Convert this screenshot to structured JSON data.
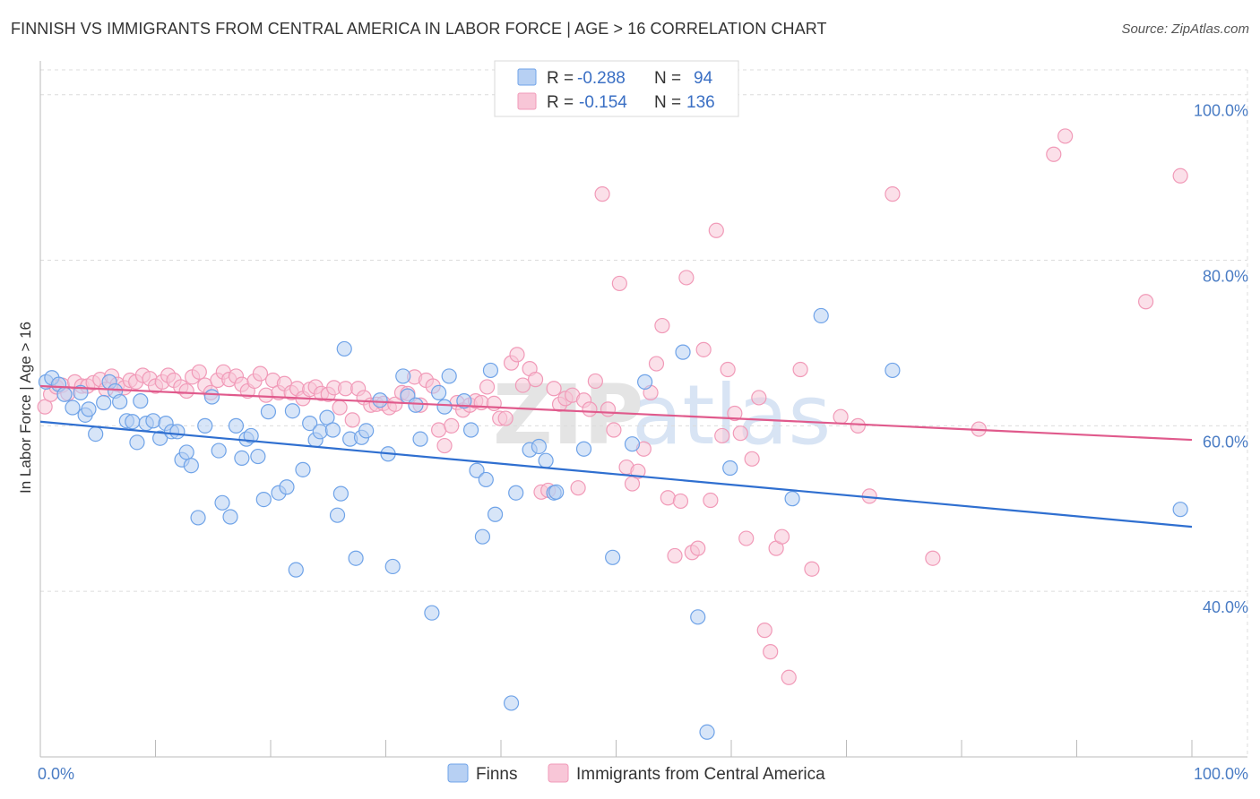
{
  "title": "FINNISH VS IMMIGRANTS FROM CENTRAL AMERICA IN LABOR FORCE | AGE > 16 CORRELATION CHART",
  "source": "Source: ZipAtlas.com",
  "watermark": "ZIPatlas",
  "chart_data": {
    "type": "scatter",
    "title": "FINNISH VS IMMIGRANTS FROM CENTRAL AMERICA IN LABOR FORCE | AGE > 16 CORRELATION CHART",
    "xlabel": "",
    "ylabel": "In Labor Force | Age > 16",
    "xlim": [
      0,
      100
    ],
    "ylim": [
      20,
      103
    ],
    "x_tick_labels": [
      "0.0%",
      "100.0%"
    ],
    "y_ticks": [
      40,
      60,
      80,
      100
    ],
    "y_tick_labels": [
      "40.0%",
      "60.0%",
      "80.0%",
      "100.0%"
    ],
    "grid": true,
    "legend_position": "top-center",
    "legend": {
      "rows": [
        {
          "r_label": "R =",
          "r_value": "-0.288",
          "n_label": "N =",
          "n_value": "94"
        },
        {
          "r_label": "R =",
          "r_value": "-0.154",
          "n_label": "N =",
          "n_value": "136"
        }
      ]
    },
    "series": [
      {
        "name": "Finns",
        "color": "#6fa3e8",
        "fill": "#b7d0f3",
        "line_color": "#2f6fd0",
        "r": -0.288,
        "n": 94,
        "trend": {
          "x": [
            0,
            100
          ],
          "y": [
            60.5,
            47.8
          ]
        },
        "points": [
          [
            0.5,
            65.3
          ],
          [
            1.0,
            65.8
          ],
          [
            1.6,
            65.0
          ],
          [
            2.1,
            63.8
          ],
          [
            2.8,
            62.2
          ],
          [
            3.5,
            64.0
          ],
          [
            3.9,
            61.3
          ],
          [
            4.2,
            62.0
          ],
          [
            4.8,
            59.0
          ],
          [
            5.5,
            62.8
          ],
          [
            6.0,
            65.3
          ],
          [
            6.5,
            64.2
          ],
          [
            6.9,
            62.9
          ],
          [
            7.5,
            60.6
          ],
          [
            8.0,
            60.5
          ],
          [
            8.4,
            58.0
          ],
          [
            8.7,
            63.0
          ],
          [
            9.2,
            60.3
          ],
          [
            9.8,
            60.6
          ],
          [
            10.4,
            58.5
          ],
          [
            10.9,
            60.3
          ],
          [
            11.4,
            59.3
          ],
          [
            11.9,
            59.3
          ],
          [
            12.3,
            55.9
          ],
          [
            12.7,
            56.8
          ],
          [
            13.1,
            55.2
          ],
          [
            13.7,
            48.9
          ],
          [
            14.3,
            60.0
          ],
          [
            14.9,
            63.5
          ],
          [
            15.5,
            57.0
          ],
          [
            15.8,
            50.7
          ],
          [
            16.5,
            49.0
          ],
          [
            17.0,
            60.0
          ],
          [
            17.5,
            56.1
          ],
          [
            17.9,
            58.4
          ],
          [
            18.3,
            58.8
          ],
          [
            18.9,
            56.3
          ],
          [
            19.4,
            51.1
          ],
          [
            19.8,
            61.7
          ],
          [
            20.7,
            51.9
          ],
          [
            21.4,
            52.6
          ],
          [
            21.9,
            61.8
          ],
          [
            22.2,
            42.6
          ],
          [
            22.8,
            54.7
          ],
          [
            23.4,
            60.3
          ],
          [
            23.9,
            58.3
          ],
          [
            24.3,
            59.3
          ],
          [
            24.9,
            61.0
          ],
          [
            25.4,
            59.5
          ],
          [
            25.8,
            49.2
          ],
          [
            26.1,
            51.8
          ],
          [
            26.4,
            69.3
          ],
          [
            26.9,
            58.4
          ],
          [
            27.4,
            44.0
          ],
          [
            27.9,
            58.6
          ],
          [
            28.3,
            59.4
          ],
          [
            29.5,
            63.1
          ],
          [
            30.2,
            56.6
          ],
          [
            30.6,
            43.0
          ],
          [
            31.5,
            66.0
          ],
          [
            31.9,
            63.6
          ],
          [
            32.6,
            62.5
          ],
          [
            33.0,
            58.4
          ],
          [
            34.0,
            37.4
          ],
          [
            34.6,
            64.0
          ],
          [
            35.1,
            62.3
          ],
          [
            35.5,
            66.0
          ],
          [
            36.8,
            63.0
          ],
          [
            37.4,
            59.5
          ],
          [
            37.9,
            54.6
          ],
          [
            38.4,
            46.6
          ],
          [
            38.7,
            53.5
          ],
          [
            39.1,
            66.7
          ],
          [
            39.5,
            49.3
          ],
          [
            40.9,
            26.5
          ],
          [
            41.3,
            51.9
          ],
          [
            42.5,
            57.1
          ],
          [
            43.3,
            57.5
          ],
          [
            43.9,
            55.8
          ],
          [
            44.6,
            51.9
          ],
          [
            44.8,
            52.0
          ],
          [
            47.2,
            57.2
          ],
          [
            49.7,
            44.1
          ],
          [
            51.4,
            57.8
          ],
          [
            52.5,
            65.3
          ],
          [
            55.8,
            68.9
          ],
          [
            57.1,
            36.9
          ],
          [
            57.9,
            23.0
          ],
          [
            59.9,
            54.9
          ],
          [
            65.3,
            51.2
          ],
          [
            67.8,
            73.3
          ],
          [
            74.0,
            66.7
          ],
          [
            99.0,
            49.9
          ]
        ]
      },
      {
        "name": "Immigrants from Central America",
        "color": "#f19ab8",
        "fill": "#f8c6d7",
        "line_color": "#e05a8c",
        "r": -0.154,
        "n": 136,
        "trend": {
          "x": [
            0,
            100
          ],
          "y": [
            64.8,
            58.3
          ]
        },
        "points": [
          [
            0.4,
            62.3
          ],
          [
            0.9,
            63.8
          ],
          [
            1.4,
            64.7
          ],
          [
            1.9,
            64.9
          ],
          [
            2.4,
            63.9
          ],
          [
            3.0,
            65.3
          ],
          [
            3.6,
            64.8
          ],
          [
            4.1,
            64.8
          ],
          [
            4.6,
            65.2
          ],
          [
            5.2,
            65.6
          ],
          [
            5.7,
            64.4
          ],
          [
            6.2,
            66.0
          ],
          [
            6.7,
            65.0
          ],
          [
            7.3,
            64.6
          ],
          [
            7.8,
            65.5
          ],
          [
            8.3,
            65.3
          ],
          [
            8.9,
            66.1
          ],
          [
            9.5,
            65.7
          ],
          [
            10.0,
            64.8
          ],
          [
            10.6,
            65.3
          ],
          [
            11.1,
            66.1
          ],
          [
            11.6,
            65.5
          ],
          [
            12.2,
            64.7
          ],
          [
            12.7,
            64.2
          ],
          [
            13.2,
            65.9
          ],
          [
            13.8,
            66.5
          ],
          [
            14.3,
            64.9
          ],
          [
            14.8,
            64.0
          ],
          [
            15.4,
            65.5
          ],
          [
            15.9,
            66.5
          ],
          [
            16.4,
            65.6
          ],
          [
            17.0,
            66.0
          ],
          [
            17.5,
            65.0
          ],
          [
            18.0,
            64.2
          ],
          [
            18.6,
            65.4
          ],
          [
            19.1,
            66.3
          ],
          [
            19.6,
            63.7
          ],
          [
            20.2,
            65.5
          ],
          [
            20.7,
            64.0
          ],
          [
            21.2,
            65.1
          ],
          [
            21.8,
            64.0
          ],
          [
            22.3,
            64.5
          ],
          [
            22.8,
            63.3
          ],
          [
            23.4,
            64.4
          ],
          [
            23.9,
            64.7
          ],
          [
            24.4,
            63.9
          ],
          [
            25.0,
            63.8
          ],
          [
            25.5,
            64.6
          ],
          [
            26.0,
            62.2
          ],
          [
            26.5,
            64.5
          ],
          [
            27.1,
            60.7
          ],
          [
            27.6,
            64.5
          ],
          [
            28.1,
            63.4
          ],
          [
            28.7,
            62.5
          ],
          [
            29.2,
            62.6
          ],
          [
            29.8,
            62.7
          ],
          [
            30.3,
            62.2
          ],
          [
            30.8,
            62.6
          ],
          [
            31.4,
            64.0
          ],
          [
            31.9,
            63.9
          ],
          [
            32.5,
            65.9
          ],
          [
            33.0,
            62.5
          ],
          [
            33.5,
            65.5
          ],
          [
            34.1,
            64.8
          ],
          [
            34.6,
            59.5
          ],
          [
            35.1,
            57.6
          ],
          [
            35.7,
            60.0
          ],
          [
            36.2,
            62.8
          ],
          [
            36.7,
            61.9
          ],
          [
            37.3,
            62.5
          ],
          [
            37.8,
            63.0
          ],
          [
            38.3,
            62.8
          ],
          [
            38.8,
            64.7
          ],
          [
            39.4,
            62.7
          ],
          [
            39.9,
            60.9
          ],
          [
            40.4,
            60.9
          ],
          [
            40.9,
            67.6
          ],
          [
            41.4,
            68.6
          ],
          [
            41.9,
            64.9
          ],
          [
            42.5,
            66.9
          ],
          [
            43.0,
            65.6
          ],
          [
            43.5,
            52.0
          ],
          [
            44.1,
            52.2
          ],
          [
            44.6,
            64.5
          ],
          [
            45.1,
            62.6
          ],
          [
            45.6,
            63.3
          ],
          [
            46.2,
            63.7
          ],
          [
            46.7,
            52.5
          ],
          [
            47.2,
            63.1
          ],
          [
            47.7,
            62.0
          ],
          [
            48.2,
            65.4
          ],
          [
            48.8,
            88.0
          ],
          [
            49.3,
            62.0
          ],
          [
            49.8,
            59.5
          ],
          [
            50.3,
            77.2
          ],
          [
            50.9,
            55.0
          ],
          [
            51.4,
            53.0
          ],
          [
            51.9,
            54.5
          ],
          [
            52.4,
            57.2
          ],
          [
            53.0,
            64.0
          ],
          [
            53.5,
            67.5
          ],
          [
            54.0,
            72.1
          ],
          [
            54.5,
            51.3
          ],
          [
            55.1,
            44.3
          ],
          [
            55.6,
            50.9
          ],
          [
            56.1,
            77.9
          ],
          [
            56.6,
            44.7
          ],
          [
            57.1,
            45.2
          ],
          [
            57.6,
            69.2
          ],
          [
            58.2,
            51.0
          ],
          [
            58.7,
            83.6
          ],
          [
            59.2,
            58.8
          ],
          [
            59.7,
            66.8
          ],
          [
            60.3,
            61.5
          ],
          [
            60.8,
            59.1
          ],
          [
            61.3,
            46.4
          ],
          [
            61.8,
            56.0
          ],
          [
            62.4,
            63.4
          ],
          [
            62.9,
            35.3
          ],
          [
            63.4,
            32.7
          ],
          [
            63.9,
            45.2
          ],
          [
            64.4,
            46.6
          ],
          [
            65.0,
            29.6
          ],
          [
            66.0,
            66.8
          ],
          [
            67.0,
            42.7
          ],
          [
            69.5,
            61.1
          ],
          [
            71.0,
            60.0
          ],
          [
            72.0,
            51.5
          ],
          [
            74.0,
            88.0
          ],
          [
            77.5,
            44.0
          ],
          [
            81.5,
            59.6
          ],
          [
            88.0,
            92.8
          ],
          [
            89.0,
            95.0
          ],
          [
            96.0,
            75.0
          ],
          [
            99.0,
            90.2
          ]
        ]
      }
    ]
  },
  "bottom_legend": [
    {
      "label": "Finns",
      "color": "#6fa3e8",
      "fill": "#b7d0f3"
    },
    {
      "label": "Immigrants from Central America",
      "color": "#f19ab8",
      "fill": "#f8c6d7"
    }
  ]
}
